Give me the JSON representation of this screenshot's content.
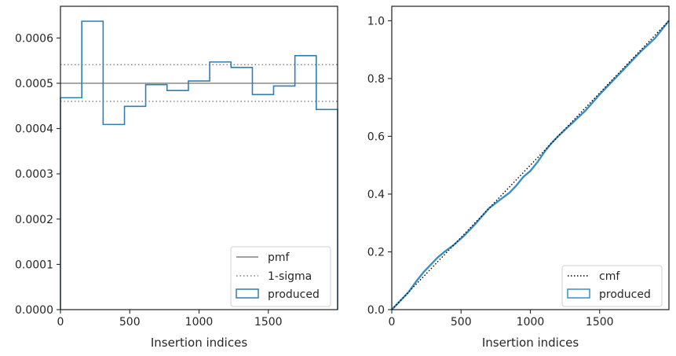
{
  "colors": {
    "hist_line": "#2f7fb0",
    "pmf_line": "#808080",
    "sigma_line": "#808080",
    "cmf_line": "#000000",
    "produced_cdf": "#3a8fc4",
    "axes": "#262626"
  },
  "chart_data": [
    {
      "type": "step",
      "title": "",
      "xlabel": "Insertion indices",
      "ylabel": "",
      "xlim": [
        0,
        2000
      ],
      "ylim": [
        0,
        0.00067
      ],
      "xticks": [
        0,
        500,
        1000,
        1500
      ],
      "xtick_labels": [
        "0",
        "500",
        "1000",
        "1500"
      ],
      "yticks": [
        0,
        0.0001,
        0.0002,
        0.0003,
        0.0004,
        0.0005,
        0.0006
      ],
      "ytick_labels": [
        "0.0000",
        "0.0001",
        "0.0002",
        "0.0003",
        "0.0004",
        "0.0005",
        "0.0006"
      ],
      "grid": false,
      "legend_position": "lower-right",
      "pmf": 0.0005,
      "sigma_band": [
        0.00046,
        0.000541
      ],
      "bin_edges": [
        0,
        154,
        308,
        462,
        615,
        769,
        923,
        1077,
        1231,
        1385,
        1538,
        1692,
        1846,
        2000
      ],
      "produced": [
        0.000468,
        0.000637,
        0.000409,
        0.000449,
        0.000497,
        0.000484,
        0.000505,
        0.000547,
        0.000535,
        0.000475,
        0.000494,
        0.000561,
        0.000442
      ],
      "legend": [
        "pmf",
        "1-sigma",
        "produced"
      ]
    },
    {
      "type": "line",
      "title": "",
      "xlabel": "Insertion indices",
      "ylabel": "",
      "xlim": [
        0,
        2000
      ],
      "ylim": [
        0,
        1.05
      ],
      "xticks": [
        0,
        500,
        1000,
        1500
      ],
      "xtick_labels": [
        "0",
        "500",
        "1000",
        "1500"
      ],
      "yticks": [
        0,
        0.2,
        0.4,
        0.6,
        0.8,
        1.0
      ],
      "ytick_labels": [
        "0.0",
        "0.2",
        "0.4",
        "0.6",
        "0.8",
        "1.0"
      ],
      "grid": false,
      "legend_position": "lower-right",
      "cmf": {
        "x": [
          0,
          2000
        ],
        "y": [
          0,
          1
        ]
      },
      "produced": {
        "x": [
          0,
          60,
          120,
          180,
          230,
          280,
          330,
          380,
          450,
          520,
          600,
          700,
          780,
          850,
          900,
          950,
          1000,
          1050,
          1100,
          1150,
          1200,
          1300,
          1400,
          1500,
          1600,
          1700,
          1750,
          1800,
          1900,
          1950,
          2000
        ],
        "y": [
          0,
          0.03,
          0.06,
          0.1,
          0.13,
          0.155,
          0.18,
          0.2,
          0.225,
          0.255,
          0.295,
          0.35,
          0.38,
          0.405,
          0.43,
          0.46,
          0.48,
          0.51,
          0.545,
          0.575,
          0.6,
          0.645,
          0.69,
          0.745,
          0.795,
          0.845,
          0.87,
          0.895,
          0.94,
          0.97,
          1.0
        ]
      },
      "legend": [
        "cmf",
        "produced"
      ]
    }
  ]
}
